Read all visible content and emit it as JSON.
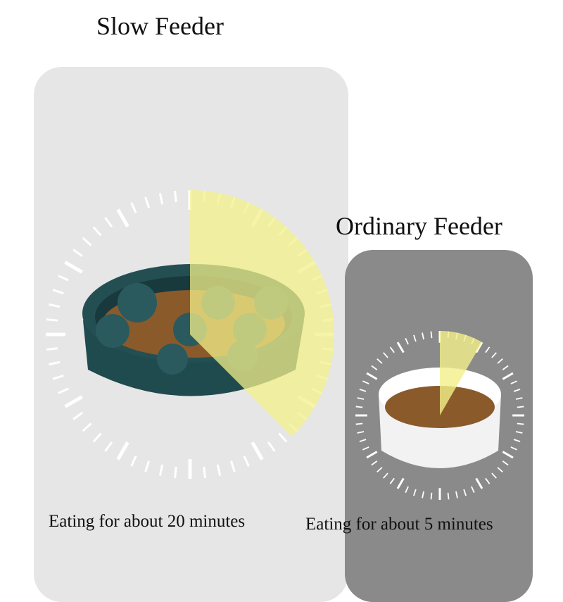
{
  "slow_feeder": {
    "title": "Slow Feeder",
    "caption": "Eating for about 20 minutes",
    "panel_color": "#e6e6e6",
    "bowl_color": "#1f4a4e"
  },
  "ordinary_feeder": {
    "title": "Ordinary  Feeder",
    "caption": "Eating for about 5 minutes",
    "panel_color": "#8a8a8a",
    "bowl_color": "#f2f2f2"
  },
  "highlight_color": "#f3f08a"
}
